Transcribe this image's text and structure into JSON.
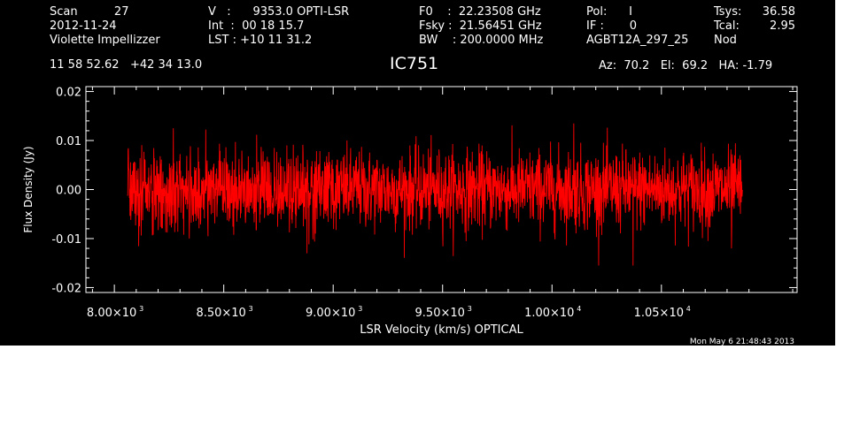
{
  "header": {
    "col1": [
      "Scan          27",
      "2012-11-24",
      "Violette Impellizzer"
    ],
    "col2": [
      "V   :      9353.0 OPTI-LSR",
      "Int  :  00 18 15.7",
      "LST : +10 11 31.2"
    ],
    "col3": [
      "F0    :  22.23508 GHz",
      "Fsky :  21.56451 GHz",
      "BW    : 200.0000 MHz"
    ],
    "col4": [
      "Pol:      I",
      "IF :       0",
      "AGBT12A_297_25"
    ],
    "col5_labels": [
      "Tsys:",
      "Tcal:",
      "Nod"
    ],
    "col5_values": [
      "36.58",
      "2.95",
      ""
    ],
    "coords": "11 58 52.62   +42 34 13.0",
    "source": "IC751",
    "az_el_ha": "Az:  70.2   El:  69.2   HA: -1.79",
    "timestamp": "Mon May  6 21:48:43 2013"
  },
  "colors": {
    "background": "#000000",
    "axes": "#ffffff",
    "series": "#ff0000"
  },
  "chart_data": {
    "type": "line",
    "xlabel": "LSR Velocity (km/s) OPTICAL",
    "ylabel": "Flux Density (Jy)",
    "xlim": [
      7870,
      11120
    ],
    "ylim": [
      -0.021,
      0.021
    ],
    "x_ticks": [
      {
        "value": 8000,
        "label": "8.00×10",
        "exp": "3"
      },
      {
        "value": 8500,
        "label": "8.50×10",
        "exp": "3"
      },
      {
        "value": 9000,
        "label": "9.00×10",
        "exp": "3"
      },
      {
        "value": 9500,
        "label": "9.50×10",
        "exp": "3"
      },
      {
        "value": 10000,
        "label": "1.00×10",
        "exp": "4"
      },
      {
        "value": 10500,
        "label": "1.05×10",
        "exp": "4"
      }
    ],
    "y_ticks": [
      {
        "value": 0.02,
        "label": "0.02"
      },
      {
        "value": 0.01,
        "label": "0.01"
      },
      {
        "value": 0.0,
        "label": "0.00"
      },
      {
        "value": -0.01,
        "label": "-0.01"
      },
      {
        "value": -0.02,
        "label": "-0.02"
      }
    ],
    "grid": false,
    "series": [
      {
        "x_start": 8060,
        "x_end": 10870,
        "n_points": 2200,
        "mean": 0.0,
        "rms": 0.004,
        "min": -0.0155,
        "max": 0.0135,
        "peaks": [
          {
            "x": 8270,
            "y": 0.0125
          },
          {
            "x": 10100,
            "y": 0.0135
          },
          {
            "x": 10370,
            "y": -0.0155
          },
          {
            "x": 10820,
            "y": -0.012
          },
          {
            "x": 8880,
            "y": -0.013
          }
        ]
      }
    ]
  }
}
